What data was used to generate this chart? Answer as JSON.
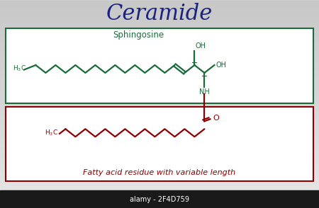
{
  "title": "Ceramide",
  "title_color": "#1a237e",
  "title_fontsize": 22,
  "background_color": "#d0d0d0",
  "sphingosine_label": "Sphingosine",
  "sphingosine_color": "#1a6b3a",
  "fatty_acid_label": "Fatty acid residue with variable length",
  "fatty_acid_color": "#8b0000",
  "box1_edge_color": "#1a6b3a",
  "box2_edge_color": "#8b0000",
  "box_face_color": "#ffffff",
  "alamy_label": "alamy - 2F4D759",
  "alamy_bg": "#1a1a1a",
  "alamy_color": "#ffffff"
}
